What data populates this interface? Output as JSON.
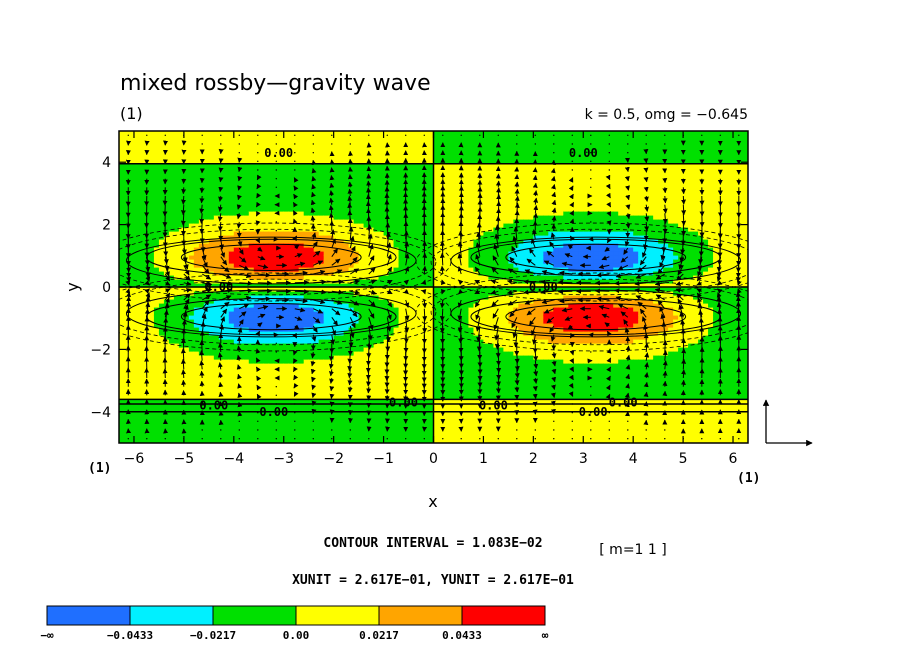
{
  "chart_data": {
    "type": "contour",
    "title": "mixed rossby—gravity wave",
    "panel_label": "(1)",
    "params_label": "k = 0.5, omg = −0.645",
    "xlabel": "x",
    "ylabel": "y",
    "xlim": [
      -6.3,
      6.3
    ],
    "ylim": [
      -5,
      5
    ],
    "x_ticks": [
      -6,
      -5,
      -4,
      -3,
      -2,
      -1,
      0,
      1,
      2,
      3,
      4,
      5,
      6
    ],
    "x_tick_labels": [
      "−6",
      "−5",
      "−4",
      "−3",
      "−2",
      "−1",
      "0",
      "1",
      "2",
      "3",
      "4",
      "5",
      "6"
    ],
    "y_ticks": [
      -4,
      -2,
      0,
      2,
      4
    ],
    "y_tick_labels": [
      "−4",
      "−2",
      "0",
      "2",
      "4"
    ],
    "corner_label_left": "(1)",
    "corner_label_right": "(1)",
    "contour_interval_label": "CONTOUR INTERVAL = 1.083E−02",
    "mode_label": "[ m=1 1 ]",
    "unit_label": "XUNIT = 2.617E−01, YUNIT = 2.617E−01",
    "contour_labels": [
      {
        "text": "0.00",
        "x": -3.1,
        "y": 4.3
      },
      {
        "text": "0.00",
        "x": 3.0,
        "y": 4.3
      },
      {
        "text": "0.00",
        "x": -4.3,
        "y": 0.0
      },
      {
        "text": "0.00",
        "x": 2.2,
        "y": 0.0
      },
      {
        "text": "0.00",
        "x": -4.4,
        "y": -3.8
      },
      {
        "text": "0.00",
        "x": -3.2,
        "y": -4.0
      },
      {
        "text": "0.00",
        "x": -0.6,
        "y": -3.7
      },
      {
        "text": "0.00",
        "x": 1.2,
        "y": -3.8
      },
      {
        "text": "0.00",
        "x": 3.2,
        "y": -4.0
      },
      {
        "text": "0.00",
        "x": 3.8,
        "y": -3.7
      }
    ],
    "colorbar": {
      "levels": [
        "−∞",
        "−0.0433",
        "−0.0217",
        "0.00",
        "0.0217",
        "0.0433",
        "∞"
      ],
      "colors": [
        "#1f6fff",
        "#00f0ff",
        "#00e000",
        "#ffff00",
        "#ffa500",
        "#ff0000"
      ]
    }
  }
}
